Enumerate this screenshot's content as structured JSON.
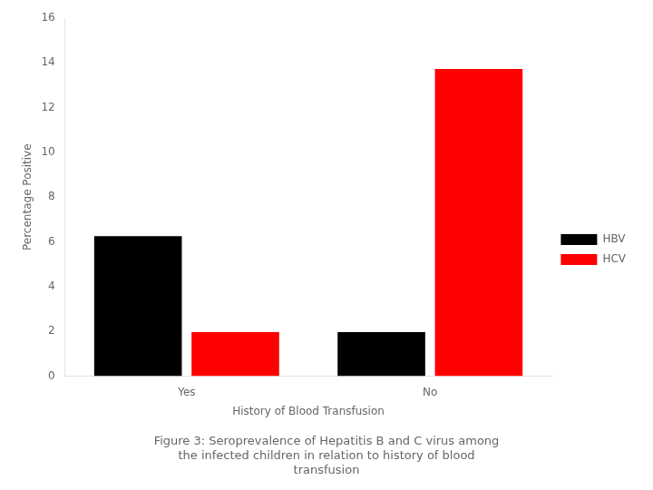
{
  "chart_data": {
    "type": "bar",
    "caption": "Figure 3: Seroprevalence of Hepatitis B and C virus among\nthe infected children in relation to history of blood\ntransfusion",
    "x_label": "History of Blood Transfusion",
    "y_label": "Percentage Positive",
    "categories": [
      "Yes",
      "No"
    ],
    "series": [
      {
        "name": "HBV",
        "color": "#000000",
        "values": [
          6.25,
          1.96
        ]
      },
      {
        "name": "HCV",
        "color": "#ff0000",
        "values": [
          1.96,
          13.73
        ]
      }
    ],
    "ylim": [
      0,
      16
    ],
    "yticks": [
      0,
      2,
      4,
      6,
      8,
      10,
      12,
      14,
      16
    ],
    "grid": false,
    "legend": "right"
  }
}
